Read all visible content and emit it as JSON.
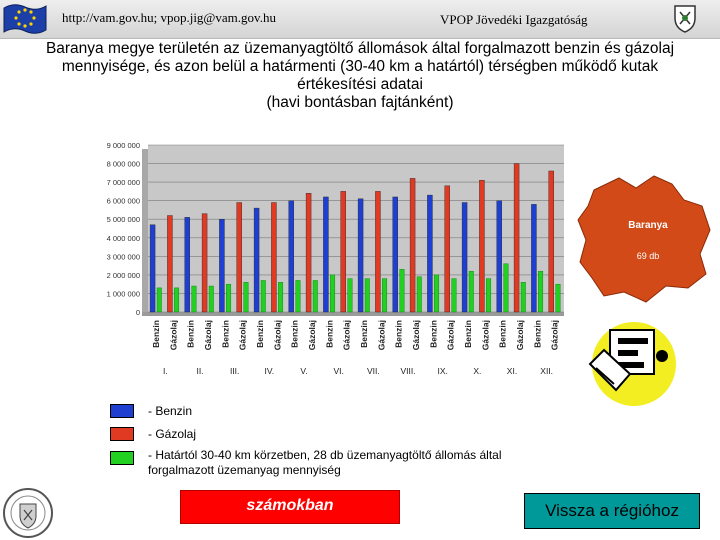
{
  "header": {
    "url_text": "http://vam.gov.hu; vpop.jig@vam.gov.hu",
    "org_name": "VPOP Jövedéki Igazgatóság"
  },
  "title_lines": [
    "Baranya megye területén az üzemanyagtöltő állomások által forgalmazott benzin és gázolaj",
    "mennyisége, és azon belül a határmenti (30-40 km a határtól) térségben működő kutak",
    "értékesítési adatai",
    "(havi bontásban fajtánként)"
  ],
  "chart_data": {
    "type": "bar",
    "categories": [
      "I.",
      "II.",
      "III.",
      "IV.",
      "V.",
      "VI.",
      "VII.",
      "VIII.",
      "IX.",
      "X.",
      "XI.",
      "XII."
    ],
    "bar_labels": [
      "Benzin",
      "Gázolaj"
    ],
    "series": [
      {
        "name": "Benzin",
        "color": "#1f3fd0",
        "values": [
          4700000,
          5100000,
          5000000,
          5600000,
          6000000,
          6200000,
          6100000,
          6200000,
          6300000,
          5900000,
          6000000,
          5800000
        ]
      },
      {
        "name": "Gázolaj",
        "color": "#e03a22",
        "values": [
          5200000,
          5300000,
          5900000,
          5900000,
          6400000,
          6500000,
          6500000,
          7200000,
          6800000,
          7100000,
          8000000,
          7600000
        ]
      },
      {
        "name": "Határtól 30-40 km körzetben",
        "color": "#22d022",
        "values": [
          1300000,
          1400000,
          1500000,
          1700000,
          1700000,
          2000000,
          1800000,
          2300000,
          2000000,
          2200000,
          2600000,
          2200000
        ]
      },
      {
        "name": "",
        "color": "#22d022",
        "values": [
          1300000,
          1400000,
          1600000,
          1600000,
          1700000,
          1800000,
          1800000,
          1900000,
          1800000,
          1800000,
          1600000,
          1500000
        ]
      }
    ],
    "ylim": [
      0,
      9000000
    ],
    "y_ticks": [
      "0",
      "1 000 000",
      "2 000 000",
      "3 000 000",
      "4 000 000",
      "5 000 000",
      "6 000 000",
      "7 000 000",
      "8 000 000",
      "9 000 000"
    ],
    "grid": true
  },
  "map": {
    "region_label": "Baranya",
    "count_label": "69 db",
    "fill_color": "#d24a17"
  },
  "legend": {
    "items": [
      {
        "color": "#1f3fd0",
        "label": "- Benzin"
      },
      {
        "color": "#e03a22",
        "label": "- Gázolaj"
      },
      {
        "color": "#22d022",
        "label": "- Határtól 30-40 km körzetben, 28 db üzemanyagtöltő állomás által forgalmazott üzemanyag mennyiség"
      }
    ]
  },
  "buttons": {
    "numbers_label": "számokban",
    "back_label": "Vissza a régióhoz"
  },
  "icons": {
    "flag": "eu-flag-icon",
    "crest": "crest-icon",
    "phone": "fax-phone-icon",
    "logo": "vpop-seal-logo"
  }
}
